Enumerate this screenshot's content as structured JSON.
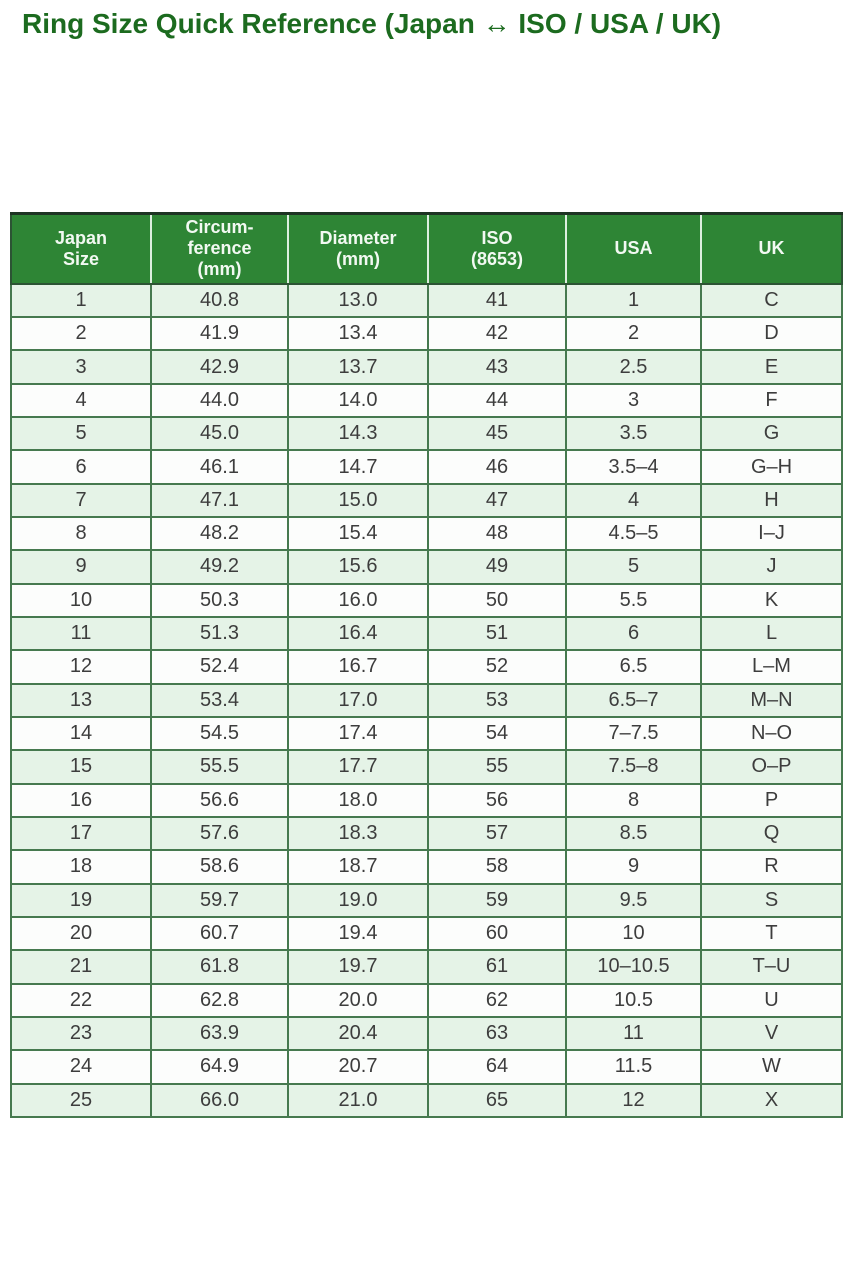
{
  "title": "Ring Size Quick Reference (Japan ↔ ISO / USA / UK)",
  "colors": {
    "title_text": "#1c6b1f",
    "header_bg": "#2e8535",
    "header_text": "#f2f9f2",
    "row_alt_bg": "#e5f3e7",
    "row_bg": "#fcfdfc",
    "border": "#46794f",
    "outer_border": "#2c5434",
    "cell_text": "#3d3d3d"
  },
  "chart_data": {
    "type": "table",
    "title": "Ring Size Quick Reference (Japan ↔ ISO / USA / UK)",
    "columns": [
      "Japan Size",
      "Circumference (mm)",
      "Diameter (mm)",
      "ISO (8653)",
      "USA",
      "UK"
    ],
    "columns_display": [
      "Japan\nSize",
      "Circum-\nference\n(mm)",
      "Diameter\n(mm)",
      "ISO\n(8653)",
      "USA",
      "UK"
    ],
    "rows": [
      [
        "1",
        "40.8",
        "13.0",
        "41",
        "1",
        "C"
      ],
      [
        "2",
        "41.9",
        "13.4",
        "42",
        "2",
        "D"
      ],
      [
        "3",
        "42.9",
        "13.7",
        "43",
        "2.5",
        "E"
      ],
      [
        "4",
        "44.0",
        "14.0",
        "44",
        "3",
        "F"
      ],
      [
        "5",
        "45.0",
        "14.3",
        "45",
        "3.5",
        "G"
      ],
      [
        "6",
        "46.1",
        "14.7",
        "46",
        "3.5–4",
        "G–H"
      ],
      [
        "7",
        "47.1",
        "15.0",
        "47",
        "4",
        "H"
      ],
      [
        "8",
        "48.2",
        "15.4",
        "48",
        "4.5–5",
        "I–J"
      ],
      [
        "9",
        "49.2",
        "15.6",
        "49",
        "5",
        "J"
      ],
      [
        "10",
        "50.3",
        "16.0",
        "50",
        "5.5",
        "K"
      ],
      [
        "11",
        "51.3",
        "16.4",
        "51",
        "6",
        "L"
      ],
      [
        "12",
        "52.4",
        "16.7",
        "52",
        "6.5",
        "L–M"
      ],
      [
        "13",
        "53.4",
        "17.0",
        "53",
        "6.5–7",
        "M–N"
      ],
      [
        "14",
        "54.5",
        "17.4",
        "54",
        "7–7.5",
        "N–O"
      ],
      [
        "15",
        "55.5",
        "17.7",
        "55",
        "7.5–8",
        "O–P"
      ],
      [
        "16",
        "56.6",
        "18.0",
        "56",
        "8",
        "P"
      ],
      [
        "17",
        "57.6",
        "18.3",
        "57",
        "8.5",
        "Q"
      ],
      [
        "18",
        "58.6",
        "18.7",
        "58",
        "9",
        "R"
      ],
      [
        "19",
        "59.7",
        "19.0",
        "59",
        "9.5",
        "S"
      ],
      [
        "20",
        "60.7",
        "19.4",
        "60",
        "10",
        "T"
      ],
      [
        "21",
        "61.8",
        "19.7",
        "61",
        "10–10.5",
        "T–U"
      ],
      [
        "22",
        "62.8",
        "20.0",
        "62",
        "10.5",
        "U"
      ],
      [
        "23",
        "63.9",
        "20.4",
        "63",
        "11",
        "V"
      ],
      [
        "24",
        "64.9",
        "20.7",
        "64",
        "11.5",
        "W"
      ],
      [
        "25",
        "66.0",
        "21.0",
        "65",
        "12",
        "X"
      ]
    ]
  }
}
